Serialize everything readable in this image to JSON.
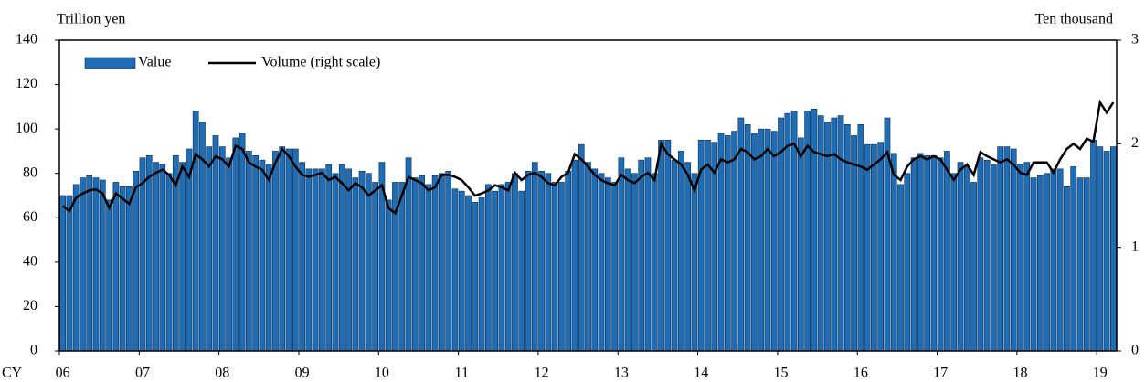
{
  "chart_data": {
    "type": "bar_line",
    "y_label": "Trillion yen",
    "y2_label": "Ten thousand",
    "x_label": "CY",
    "categories": [
      "06",
      null,
      null,
      null,
      null,
      null,
      null,
      null,
      null,
      null,
      null,
      null,
      "07",
      null,
      null,
      null,
      null,
      null,
      null,
      null,
      null,
      null,
      null,
      null,
      "08",
      null,
      null,
      null,
      null,
      null,
      null,
      null,
      null,
      null,
      null,
      null,
      "09",
      null,
      null,
      null,
      null,
      null,
      null,
      null,
      null,
      null,
      null,
      null,
      "10",
      null,
      null,
      null,
      null,
      null,
      null,
      null,
      null,
      null,
      null,
      null,
      "11",
      null,
      null,
      null,
      null,
      null,
      null,
      null,
      null,
      null,
      null,
      null,
      "12",
      null,
      null,
      null,
      null,
      null,
      null,
      null,
      null,
      null,
      null,
      null,
      "13",
      null,
      null,
      null,
      null,
      null,
      null,
      null,
      null,
      null,
      null,
      null,
      "14",
      null,
      null,
      null,
      null,
      null,
      null,
      null,
      null,
      null,
      null,
      null,
      "15",
      null,
      null,
      null,
      null,
      null,
      null,
      null,
      null,
      null,
      null,
      null,
      "16",
      null,
      null,
      null,
      null,
      null,
      null,
      null,
      null,
      null,
      null,
      null,
      "17",
      null,
      null,
      null,
      null,
      null,
      null,
      null,
      null,
      null,
      null,
      null,
      "18",
      null,
      null,
      null,
      null,
      null,
      null,
      null,
      null,
      null,
      null,
      null,
      "19",
      null,
      null
    ],
    "series": [
      {
        "name": "Value",
        "color": "#1f6eb5",
        "kind": "bar",
        "values": [
          70,
          70,
          75,
          78,
          79,
          78,
          77,
          68,
          76,
          74,
          74,
          81,
          87,
          88,
          85,
          84,
          80,
          88,
          85,
          91,
          108,
          103,
          92,
          97,
          92,
          87,
          96,
          98,
          90,
          88,
          86,
          84,
          90,
          92,
          91,
          91,
          85,
          82,
          82,
          82,
          84,
          80,
          84,
          82,
          78,
          81,
          80,
          76,
          85,
          68,
          76,
          76,
          87,
          78,
          79,
          75,
          79,
          80,
          81,
          73,
          72,
          70,
          67,
          69,
          75,
          72,
          75,
          76,
          80,
          72,
          81,
          85,
          81,
          80,
          76,
          76,
          81,
          86,
          93,
          85,
          82,
          80,
          78,
          76,
          87,
          82,
          80,
          86,
          87,
          80,
          95,
          95,
          86,
          90,
          85,
          80,
          95,
          95,
          94,
          98,
          97,
          99,
          105,
          102,
          98,
          100,
          100,
          99,
          105,
          107,
          108,
          96,
          108,
          109,
          106,
          103,
          105,
          106,
          102,
          97,
          102,
          93,
          93,
          94,
          105,
          89,
          75,
          80,
          87,
          89,
          88,
          88,
          87,
          90,
          80,
          85,
          83,
          76,
          87,
          86,
          84,
          92,
          92,
          91,
          84,
          85,
          78,
          79,
          80,
          82,
          82,
          74,
          83,
          78,
          78,
          95,
          92,
          90,
          92
        ]
      },
      {
        "name": "Volume (right scale)",
        "color": "#000000",
        "kind": "line",
        "axis": "y2",
        "values": [
          1.4,
          1.35,
          1.48,
          1.52,
          1.55,
          1.56,
          1.52,
          1.38,
          1.52,
          1.47,
          1.42,
          1.58,
          1.62,
          1.68,
          1.72,
          1.75,
          1.7,
          1.6,
          1.78,
          1.68,
          1.9,
          1.85,
          1.78,
          1.88,
          1.85,
          1.78,
          1.98,
          1.95,
          1.82,
          1.78,
          1.75,
          1.65,
          1.82,
          1.95,
          1.88,
          1.78,
          1.7,
          1.68,
          1.7,
          1.72,
          1.65,
          1.68,
          1.62,
          1.55,
          1.62,
          1.58,
          1.5,
          1.55,
          1.6,
          1.38,
          1.33,
          1.5,
          1.68,
          1.65,
          1.62,
          1.55,
          1.58,
          1.7,
          1.7,
          1.68,
          1.65,
          1.58,
          1.5,
          1.52,
          1.55,
          1.6,
          1.58,
          1.55,
          1.72,
          1.65,
          1.7,
          1.72,
          1.68,
          1.62,
          1.6,
          1.68,
          1.72,
          1.9,
          1.85,
          1.78,
          1.7,
          1.65,
          1.62,
          1.6,
          1.7,
          1.65,
          1.62,
          1.68,
          1.72,
          1.65,
          2.0,
          1.9,
          1.85,
          1.8,
          1.7,
          1.55,
          1.75,
          1.8,
          1.72,
          1.85,
          1.82,
          1.85,
          1.95,
          1.92,
          1.85,
          1.88,
          1.95,
          1.88,
          1.92,
          1.98,
          2.0,
          1.88,
          1.98,
          1.92,
          1.9,
          1.88,
          1.9,
          1.85,
          1.82,
          1.8,
          1.78,
          1.75,
          1.8,
          1.85,
          1.92,
          1.7,
          1.65,
          1.78,
          1.85,
          1.88,
          1.85,
          1.88,
          1.85,
          1.75,
          1.65,
          1.75,
          1.8,
          1.7,
          1.92,
          1.88,
          1.85,
          1.82,
          1.85,
          1.8,
          1.72,
          1.7,
          1.82,
          1.82,
          1.82,
          1.72,
          1.85,
          1.95,
          2.0,
          1.95,
          2.05,
          2.02,
          2.4,
          2.3,
          2.4
        ]
      }
    ],
    "ylim": [
      0,
      140
    ],
    "yticks": [
      0,
      20,
      40,
      60,
      80,
      100,
      120,
      140
    ],
    "y2lim": [
      0,
      3
    ],
    "y2ticks": [
      0,
      1,
      2,
      3
    ],
    "legend": "top-left"
  }
}
